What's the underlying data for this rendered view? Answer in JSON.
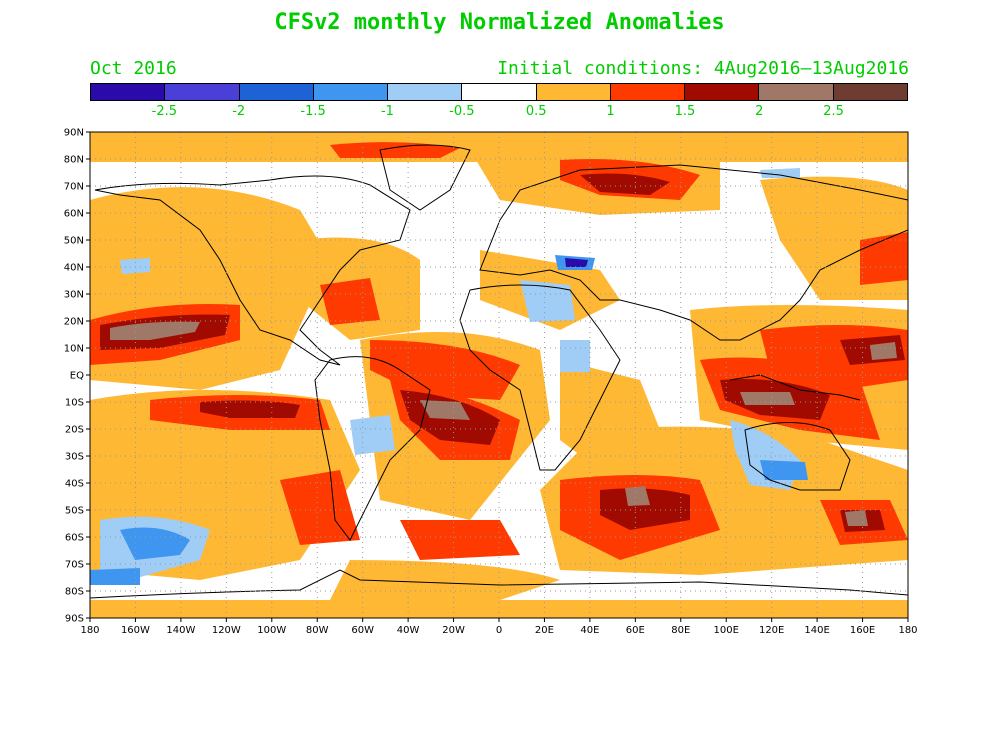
{
  "header": {
    "title": "CFSv2 monthly Normalized Anomalies",
    "month": "Oct 2016",
    "initial_conditions": "Initial conditions: 4Aug2016–13Aug2016",
    "text_color": "#00cc00"
  },
  "colorbar": {
    "colors": [
      "#2a0aa8",
      "#4a3fd6",
      "#1e63d6",
      "#3f96f0",
      "#9fcdf5",
      "#ffffff",
      "#ffb833",
      "#ff3a00",
      "#a00a00",
      "#a07868",
      "#6e3c30"
    ],
    "labels": [
      "-2.5",
      "-2",
      "-1.5",
      "-1",
      "-0.5",
      "0.5",
      "1",
      "1.5",
      "2",
      "2.5"
    ]
  },
  "axes": {
    "lat_labels": [
      "90N",
      "80N",
      "70N",
      "60N",
      "50N",
      "40N",
      "30N",
      "20N",
      "10N",
      "EQ",
      "10S",
      "20S",
      "30S",
      "40S",
      "50S",
      "60S",
      "70S",
      "80S",
      "90S"
    ],
    "lon_labels": [
      "180",
      "160W",
      "140W",
      "120W",
      "100W",
      "80W",
      "60W",
      "40W",
      "20W",
      "0",
      "20E",
      "40E",
      "60E",
      "80E",
      "100E",
      "120E",
      "140E",
      "160E",
      "180"
    ]
  }
}
